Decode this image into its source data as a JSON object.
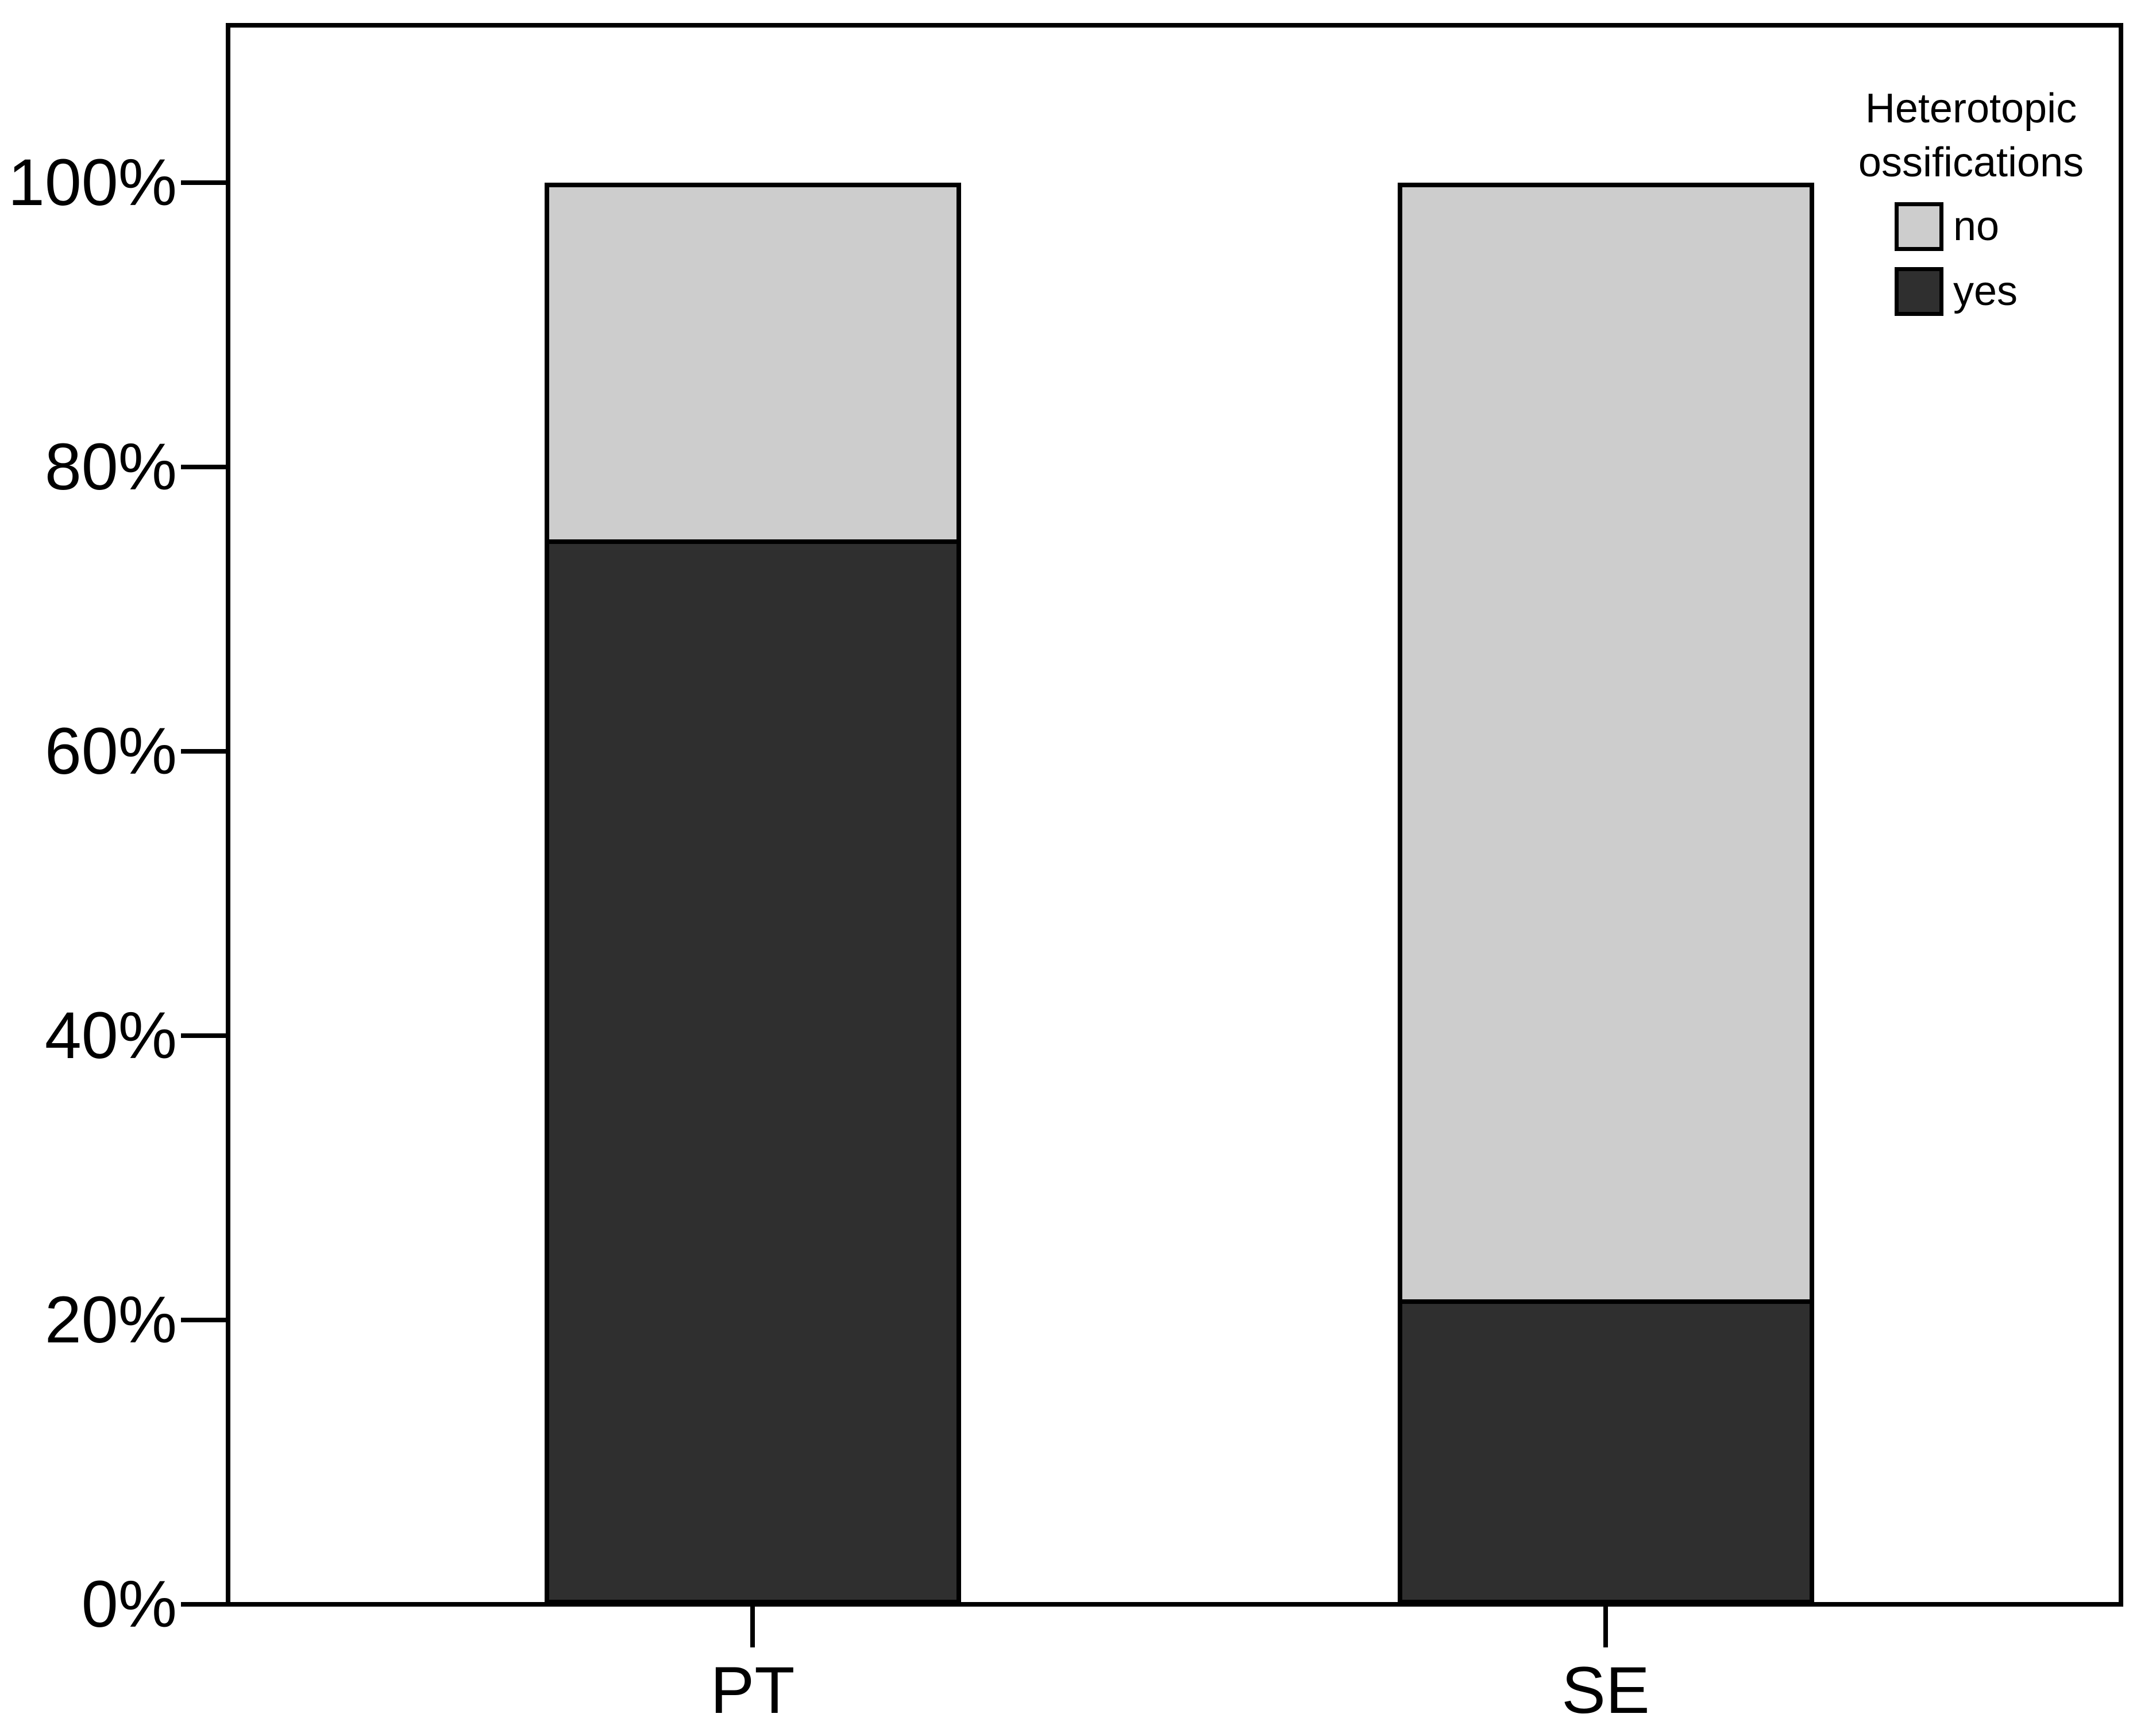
{
  "chart_data": {
    "type": "bar",
    "subtype": "stacked-percentage",
    "title": "",
    "xlabel": "",
    "ylabel": "",
    "categories": [
      "PT",
      "SE"
    ],
    "series": [
      {
        "name": "no",
        "color": "#cdcdcd",
        "values": [
          25,
          79
        ]
      },
      {
        "name": "yes",
        "color": "#2f2f2f",
        "values": [
          75,
          21
        ]
      }
    ],
    "units": "%",
    "y_axis": {
      "range": [
        0,
        100
      ],
      "ticks": [
        {
          "value": 0,
          "label": "0%"
        },
        {
          "value": 20,
          "label": "20%"
        },
        {
          "value": 40,
          "label": "40%"
        },
        {
          "value": 60,
          "label": "60%"
        },
        {
          "value": 80,
          "label": "80%"
        },
        {
          "value": 100,
          "label": "100%"
        }
      ]
    },
    "legend": {
      "title": "Heterotopic ossifications",
      "position": "top-right",
      "entries": [
        "no",
        "yes"
      ]
    },
    "grid": false,
    "outline_color": "#000000",
    "background_color": "#ffffff"
  }
}
